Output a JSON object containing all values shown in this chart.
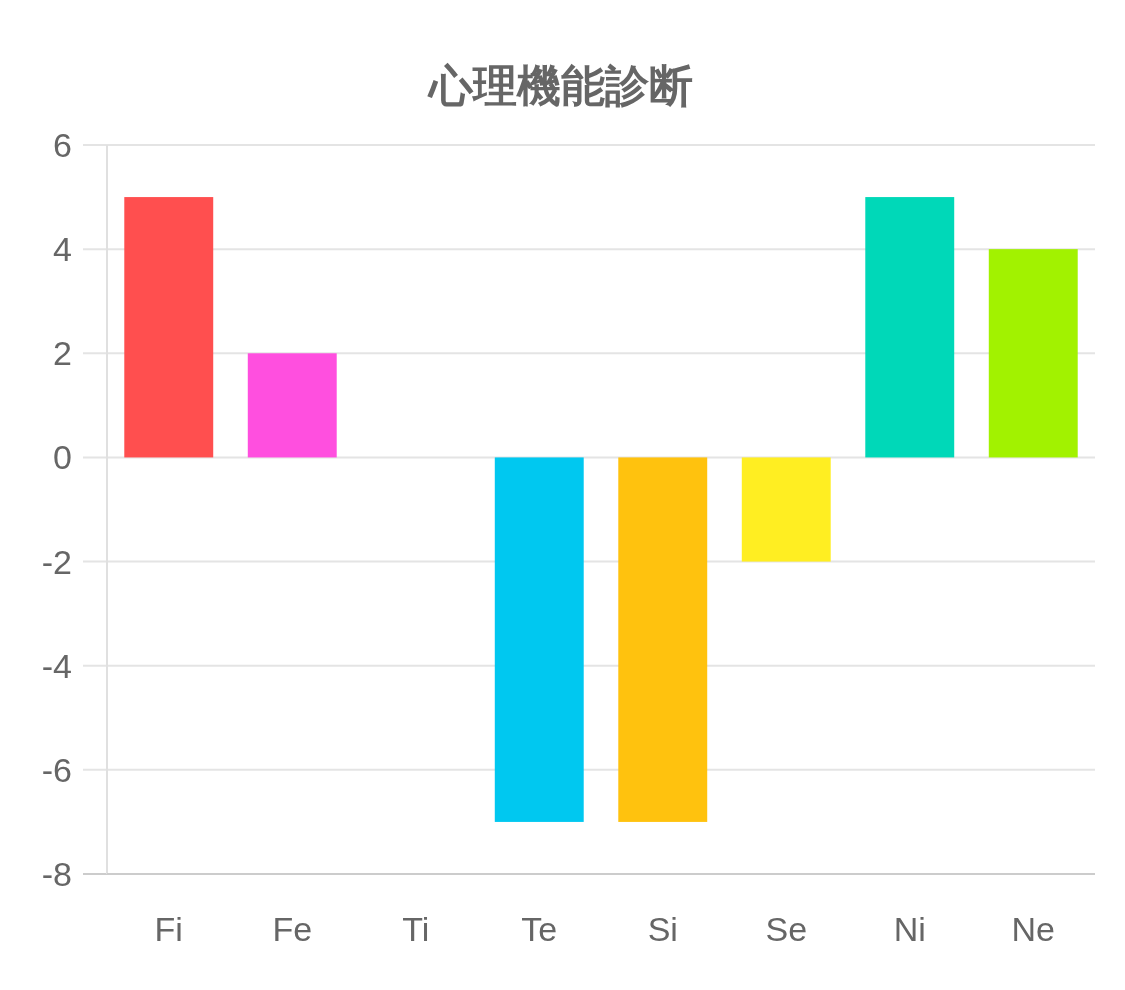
{
  "chart_data": {
    "type": "bar",
    "title": "心理機能診断",
    "categories": [
      "Fi",
      "Fe",
      "Ti",
      "Te",
      "Si",
      "Se",
      "Ni",
      "Ne"
    ],
    "values": [
      5,
      2,
      0,
      -7,
      -7,
      -2,
      5,
      4
    ],
    "colors": [
      "#ff4f4f",
      "#ff4fdf",
      null,
      "#00c8f0",
      "#ffc20e",
      "#ffee22",
      "#00d8b8",
      "#a2f200"
    ],
    "ylim": [
      -8,
      6
    ],
    "yticks": [
      -8,
      -6,
      -4,
      -2,
      0,
      2,
      4,
      6
    ],
    "grid": "y"
  }
}
